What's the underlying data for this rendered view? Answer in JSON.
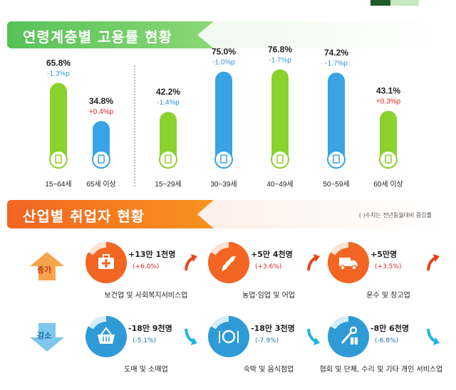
{
  "section1": {
    "title": "연령계층별 고용률 현황"
  },
  "section2": {
    "title": "산업별 취업자 현황",
    "note": "( )수치는 전년동월대비 증감률"
  },
  "colors": {
    "green": "#8bd22f",
    "blue": "#3aa3e6",
    "neg": "#3399dd",
    "pos": "#e0261f",
    "orange": "#f26522",
    "ring_up": "#f7b37d",
    "ring_down": "#8fd0f0"
  },
  "chart_data": {
    "type": "bar",
    "categories": [
      "15~64세",
      "65세 이상",
      "15~29세",
      "30~39세",
      "40~49세",
      "50~59세",
      "60세 이상"
    ],
    "values": [
      65.8,
      34.8,
      42.2,
      75.0,
      76.8,
      74.2,
      43.1
    ],
    "value_labels": [
      "65.8%",
      "34.8%",
      "42.2%",
      "75.0%",
      "76.8%",
      "74.2%",
      "43.1%"
    ],
    "changes": [
      "-1.3%p",
      "+0.4%p",
      "-1.4%p",
      "-1.0%p",
      "-1.7%p",
      "-1.7%p",
      "+0.3%p"
    ],
    "bar_colors": [
      "green",
      "blue",
      "green",
      "blue",
      "green",
      "blue",
      "green"
    ],
    "change_signs": [
      "neg",
      "pos",
      "neg",
      "neg",
      "neg",
      "neg",
      "pos"
    ],
    "title": "연령계층별 고용률 현황",
    "xlabel": "",
    "ylabel": "",
    "ylim": [
      0,
      80
    ],
    "grid": false
  },
  "industries": {
    "increase_label": "증가",
    "decrease_label": "감소",
    "increase": [
      {
        "name": "보건업 및 사회복지서비스업",
        "value": "+13만 1천명",
        "pct": "(+6.0%)",
        "icon": "first-aid-kit-icon"
      },
      {
        "name": "농업·임업 및 어업",
        "value": "+5만 4천명",
        "pct": "(+3.6%)",
        "icon": "wheat-icon"
      },
      {
        "name": "운수 및 창고업",
        "value": "+5만명",
        "pct": "(+3.5%)",
        "icon": "truck-icon"
      }
    ],
    "decrease": [
      {
        "name": "도매 및 소매업",
        "value": "-18만 9천명",
        "pct": "(-5.1%)",
        "icon": "shopping-basket-icon"
      },
      {
        "name": "숙박 및 음식점업",
        "value": "-18만 3천명",
        "pct": "(-7.9%)",
        "icon": "dining-plate-icon"
      },
      {
        "name": "협회 및 단체, 수리 및 기타 개인 서비스업",
        "value": "-8만 6천명",
        "pct": "(-6.8%)",
        "icon": "repair-tools-icon"
      }
    ]
  }
}
